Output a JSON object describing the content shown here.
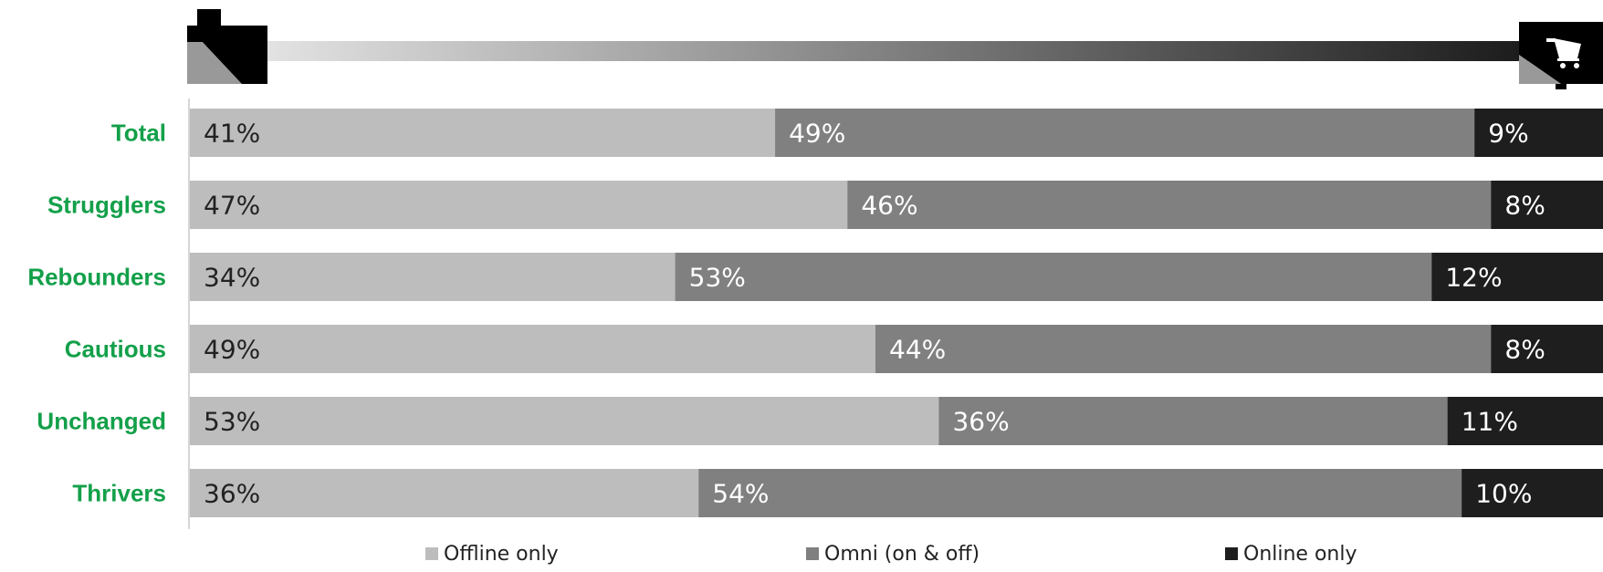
{
  "chart_data": {
    "type": "bar",
    "orientation": "horizontal",
    "stacked": true,
    "categories": [
      "Total",
      "Strugglers",
      "Rebounders",
      "Cautious",
      "Unchanged",
      "Thrivers"
    ],
    "series": [
      {
        "name": "Offline only",
        "values": [
          41,
          47,
          34,
          49,
          53,
          36
        ],
        "labels": [
          "41%",
          "47%",
          "34%",
          "49%",
          "53%",
          "36%"
        ],
        "color": "#bdbdbd",
        "label_color": "#222222"
      },
      {
        "name": "Omni (on & off)",
        "values": [
          49,
          46,
          53,
          44,
          36,
          54
        ],
        "labels": [
          "49%",
          "46%",
          "53%",
          "44%",
          "36%",
          "54%"
        ],
        "color": "#808080",
        "label_color": "#ffffff"
      },
      {
        "name": "Online only",
        "values": [
          9,
          8,
          12,
          8,
          11,
          10
        ],
        "labels": [
          "9%",
          "8%",
          "12%",
          "8%",
          "11%",
          "10%"
        ],
        "color": "#1e1e1e",
        "label_color": "#ffffff"
      }
    ],
    "xlim": [
      0,
      100
    ],
    "category_label_color": "#13a04a",
    "legend_position": "bottom",
    "scale_icons": [
      "store-icon",
      "shopping-cart-icon"
    ],
    "gradient_colors": [
      "#e6e6e6",
      "#1a1a1a"
    ]
  }
}
